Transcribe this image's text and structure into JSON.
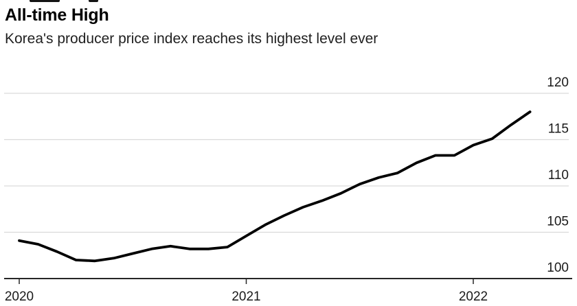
{
  "chart_data": {
    "type": "line",
    "title": "All-time High",
    "subtitle": "Korea's producer price index reaches its highest level ever",
    "x_start": "2020-01",
    "x_interval": "monthly",
    "x_tick_labels": [
      "2020",
      "2021",
      "2022"
    ],
    "y_ticks": [
      100,
      105,
      110,
      115,
      120
    ],
    "ylim": [
      100,
      120
    ],
    "grid": "horizontal-only",
    "legend": "none",
    "series": [
      {
        "name": "Korea producer price index",
        "color": "#000000",
        "values": [
          104.1,
          103.7,
          102.9,
          102.0,
          101.9,
          102.2,
          102.7,
          103.2,
          103.5,
          103.2,
          103.2,
          103.4,
          104.6,
          105.8,
          106.8,
          107.7,
          108.4,
          109.2,
          110.2,
          110.9,
          111.4,
          112.5,
          113.3,
          113.3,
          114.4,
          115.1,
          116.6,
          118.0
        ]
      }
    ]
  },
  "colors": {
    "background": "#ffffff",
    "title_text": "#000000",
    "subtitle_text": "#1f1f1f",
    "gridline": "#d9d9d9",
    "axis": "#262626",
    "tick_label": "#1a1a1a",
    "series_line": "#000000"
  }
}
